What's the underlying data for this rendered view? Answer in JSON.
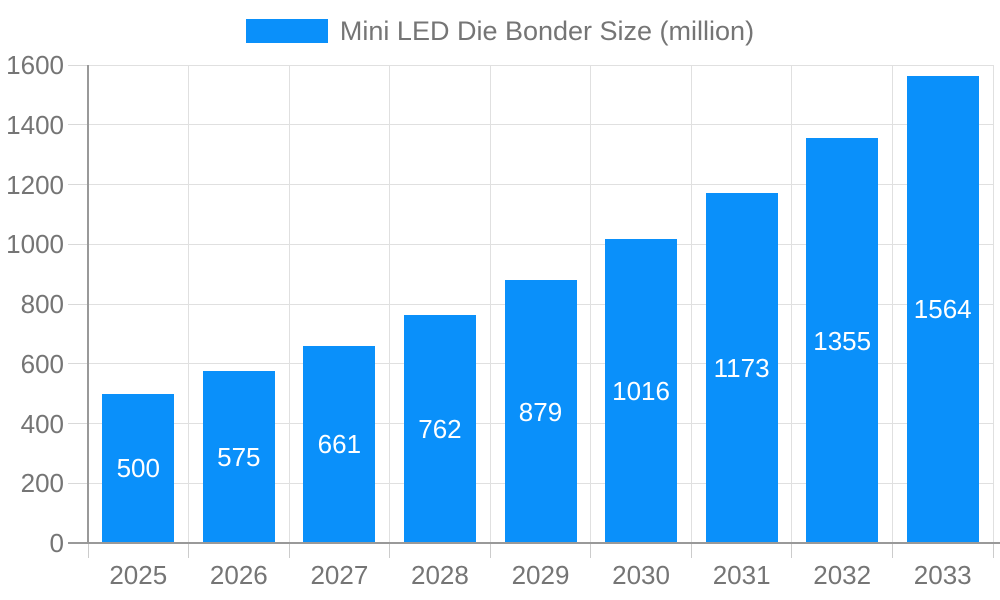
{
  "legend": {
    "label": "Mini LED Die Bonder Size (million)"
  },
  "colors": {
    "bar": "#0a90fa",
    "grid": "#e0e0e0",
    "axis": "#999999",
    "tick": "#cccccc",
    "axis_text": "#757575",
    "bar_label_text": "#ffffff",
    "background": "#ffffff"
  },
  "chart_data": {
    "type": "bar",
    "title": "",
    "legend_entries": [
      "Mini LED Die Bonder Size (million)"
    ],
    "legend_position": "top-center",
    "categories": [
      "2025",
      "2026",
      "2027",
      "2028",
      "2029",
      "2030",
      "2031",
      "2032",
      "2033"
    ],
    "values": [
      500,
      575,
      661,
      762,
      879,
      1016,
      1173,
      1355,
      1564
    ],
    "value_labels_inside_bars": true,
    "xlabel": "",
    "ylabel": "",
    "ylim": [
      0,
      1600
    ],
    "yticks": [
      0,
      200,
      400,
      600,
      800,
      1000,
      1200,
      1400,
      1600
    ],
    "grid": true
  }
}
